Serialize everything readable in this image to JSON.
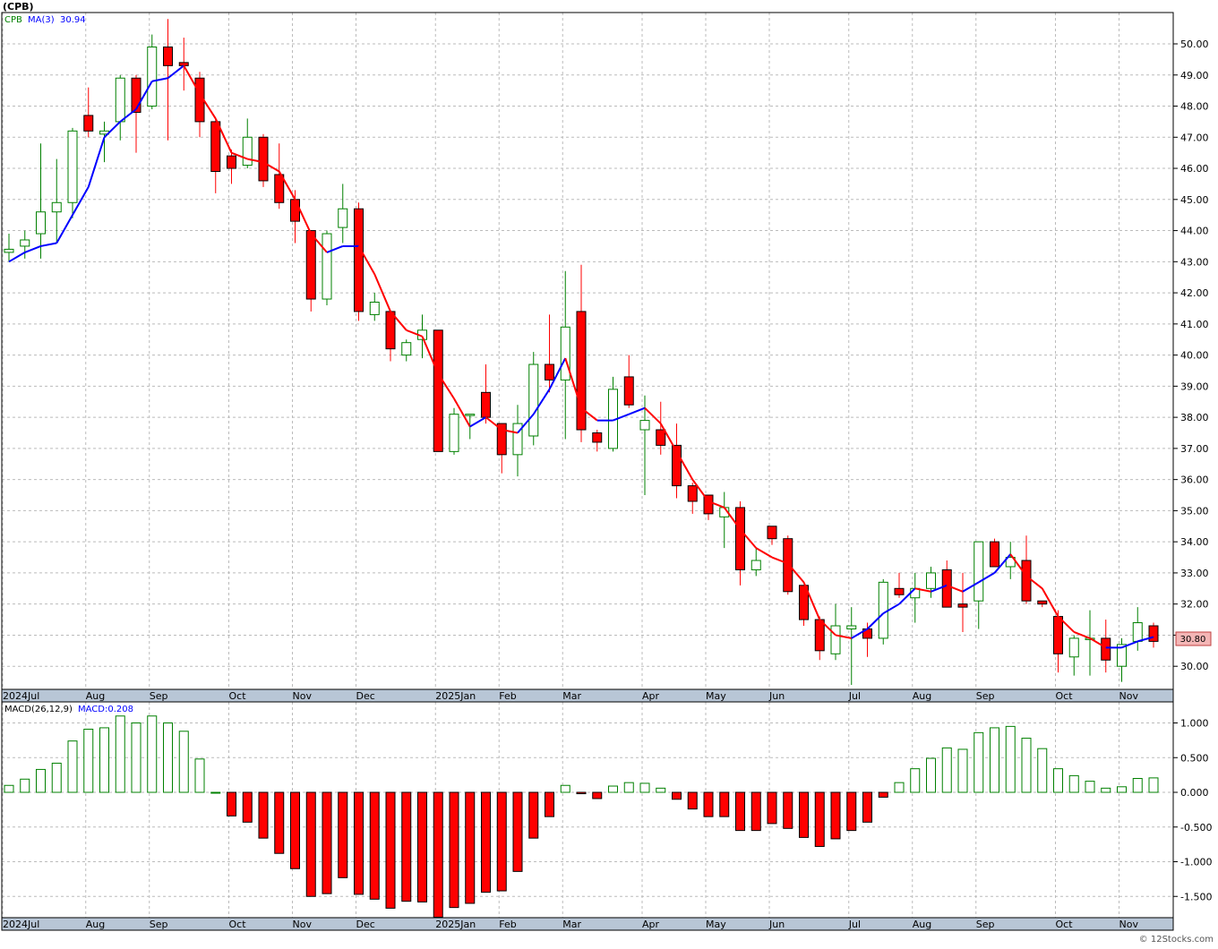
{
  "ticker_title": "(CPB)",
  "footer": "© 12Stocks.com",
  "colors": {
    "up": "#008000",
    "down": "#ff0000",
    "ma_up": "#0000ff",
    "ma_down": "#ff0000",
    "grid": "#bbbbbb",
    "axis_band": "#b8c6d6",
    "price_tag_bg": "#f4b6b6"
  },
  "price_panel": {
    "legend_symbol": "CPB",
    "legend_ma": "MA(3)",
    "legend_ma_value": "30.94",
    "last_price_label": "30.80"
  },
  "macd_panel": {
    "legend_label": "MACD(26,12,9)",
    "legend_value": "MACD:0.208"
  },
  "x_axis_labels": [
    "2024Jul",
    "Aug",
    "Sep",
    "Oct",
    "Nov",
    "Dec",
    "2025Jan",
    "Feb",
    "Mar",
    "Apr",
    "May",
    "Jun",
    "Jul",
    "Aug",
    "Sep",
    "Oct",
    "Nov"
  ],
  "chart_data": [
    {
      "type": "candlestick",
      "title": "(CPB)",
      "ylim": [
        29.4,
        50.9
      ],
      "y_ticks": [
        "30.00",
        "31.00",
        "32.00",
        "33.00",
        "34.00",
        "35.00",
        "36.00",
        "37.00",
        "38.00",
        "39.00",
        "40.00",
        "41.00",
        "42.00",
        "43.00",
        "44.00",
        "45.00",
        "46.00",
        "47.00",
        "48.00",
        "49.00",
        "50.00"
      ],
      "month_starts": [
        {
          "label": "2024Jul",
          "index": -0.4
        },
        {
          "label": "Aug",
          "index": 5
        },
        {
          "label": "Sep",
          "index": 9
        },
        {
          "label": "Oct",
          "index": 14
        },
        {
          "label": "Nov",
          "index": 18
        },
        {
          "label": "Dec",
          "index": 22
        },
        {
          "label": "2025Jan",
          "index": 27
        },
        {
          "label": "Feb",
          "index": 31
        },
        {
          "label": "Mar",
          "index": 35
        },
        {
          "label": "Apr",
          "index": 40
        },
        {
          "label": "May",
          "index": 44
        },
        {
          "label": "Jun",
          "index": 48
        },
        {
          "label": "Jul",
          "index": 53
        },
        {
          "label": "Aug",
          "index": 57
        },
        {
          "label": "Sep",
          "index": 61
        },
        {
          "label": "Oct",
          "index": 66
        },
        {
          "label": "Nov",
          "index": 70
        }
      ],
      "candles": [
        {
          "o": 43.3,
          "h": 43.9,
          "l": 43.0,
          "c": 43.4
        },
        {
          "o": 43.5,
          "h": 44.0,
          "l": 43.1,
          "c": 43.7
        },
        {
          "o": 43.9,
          "h": 46.8,
          "l": 43.1,
          "c": 44.6
        },
        {
          "o": 44.6,
          "h": 46.3,
          "l": 43.6,
          "c": 44.9
        },
        {
          "o": 44.9,
          "h": 47.3,
          "l": 44.4,
          "c": 47.2
        },
        {
          "o": 47.7,
          "h": 48.6,
          "l": 47.0,
          "c": 47.2
        },
        {
          "o": 47.1,
          "h": 47.5,
          "l": 46.2,
          "c": 47.2
        },
        {
          "o": 47.5,
          "h": 49.0,
          "l": 46.9,
          "c": 48.9
        },
        {
          "o": 48.9,
          "h": 49.0,
          "l": 46.5,
          "c": 47.8
        },
        {
          "o": 48.0,
          "h": 50.3,
          "l": 47.9,
          "c": 49.9
        },
        {
          "o": 49.9,
          "h": 50.8,
          "l": 46.9,
          "c": 49.3
        },
        {
          "o": 49.4,
          "h": 50.2,
          "l": 48.5,
          "c": 49.3
        },
        {
          "o": 48.9,
          "h": 49.1,
          "l": 47.0,
          "c": 47.5
        },
        {
          "o": 47.5,
          "h": 47.6,
          "l": 45.2,
          "c": 45.9
        },
        {
          "o": 46.4,
          "h": 46.6,
          "l": 45.5,
          "c": 46.0
        },
        {
          "o": 46.1,
          "h": 47.6,
          "l": 46.0,
          "c": 47.0
        },
        {
          "o": 47.0,
          "h": 47.1,
          "l": 45.4,
          "c": 45.6
        },
        {
          "o": 45.8,
          "h": 46.8,
          "l": 44.7,
          "c": 44.9
        },
        {
          "o": 45.0,
          "h": 45.3,
          "l": 43.6,
          "c": 44.3
        },
        {
          "o": 44.0,
          "h": 44.0,
          "l": 41.4,
          "c": 41.8
        },
        {
          "o": 41.8,
          "h": 44.0,
          "l": 41.6,
          "c": 43.9
        },
        {
          "o": 44.1,
          "h": 45.5,
          "l": 43.6,
          "c": 44.7
        },
        {
          "o": 44.7,
          "h": 44.9,
          "l": 41.1,
          "c": 41.4
        },
        {
          "o": 41.3,
          "h": 42.0,
          "l": 41.1,
          "c": 41.7
        },
        {
          "o": 41.4,
          "h": 41.4,
          "l": 39.8,
          "c": 40.2
        },
        {
          "o": 40.0,
          "h": 40.5,
          "l": 39.8,
          "c": 40.4
        },
        {
          "o": 40.5,
          "h": 41.3,
          "l": 39.9,
          "c": 40.8
        },
        {
          "o": 40.8,
          "h": 40.8,
          "l": 36.9,
          "c": 36.9
        },
        {
          "o": 36.9,
          "h": 38.3,
          "l": 36.8,
          "c": 38.1
        },
        {
          "o": 38.1,
          "h": 38.1,
          "l": 37.3,
          "c": 38.1
        },
        {
          "o": 38.8,
          "h": 39.7,
          "l": 37.8,
          "c": 38.0
        },
        {
          "o": 37.8,
          "h": 37.8,
          "l": 36.2,
          "c": 36.8
        },
        {
          "o": 36.8,
          "h": 38.4,
          "l": 36.1,
          "c": 37.8
        },
        {
          "o": 37.4,
          "h": 40.1,
          "l": 37.1,
          "c": 39.7
        },
        {
          "o": 39.7,
          "h": 41.3,
          "l": 38.8,
          "c": 39.2
        },
        {
          "o": 39.2,
          "h": 42.7,
          "l": 37.3,
          "c": 40.9
        },
        {
          "o": 41.4,
          "h": 42.9,
          "l": 37.2,
          "c": 37.6
        },
        {
          "o": 37.5,
          "h": 37.6,
          "l": 36.9,
          "c": 37.2
        },
        {
          "o": 37.0,
          "h": 39.3,
          "l": 36.9,
          "c": 38.9
        },
        {
          "o": 39.3,
          "h": 40.0,
          "l": 38.3,
          "c": 38.4
        },
        {
          "o": 37.6,
          "h": 38.7,
          "l": 35.5,
          "c": 37.9
        },
        {
          "o": 37.6,
          "h": 38.5,
          "l": 36.8,
          "c": 37.1
        },
        {
          "o": 37.1,
          "h": 37.8,
          "l": 35.4,
          "c": 35.8
        },
        {
          "o": 35.8,
          "h": 35.9,
          "l": 34.9,
          "c": 35.3
        },
        {
          "o": 35.5,
          "h": 35.5,
          "l": 34.7,
          "c": 34.9
        },
        {
          "o": 34.8,
          "h": 35.6,
          "l": 33.8,
          "c": 35.1
        },
        {
          "o": 35.1,
          "h": 35.3,
          "l": 32.6,
          "c": 33.1
        },
        {
          "o": 33.1,
          "h": 33.8,
          "l": 32.9,
          "c": 33.4
        },
        {
          "o": 34.5,
          "h": 34.5,
          "l": 33.9,
          "c": 34.1
        },
        {
          "o": 34.1,
          "h": 34.2,
          "l": 32.3,
          "c": 32.4
        },
        {
          "o": 32.6,
          "h": 32.6,
          "l": 31.3,
          "c": 31.5
        },
        {
          "o": 31.5,
          "h": 31.6,
          "l": 30.2,
          "c": 30.5
        },
        {
          "o": 30.4,
          "h": 32.0,
          "l": 30.2,
          "c": 31.3
        },
        {
          "o": 31.2,
          "h": 31.9,
          "l": 29.4,
          "c": 31.3
        },
        {
          "o": 31.2,
          "h": 31.4,
          "l": 30.3,
          "c": 30.9
        },
        {
          "o": 30.9,
          "h": 32.8,
          "l": 30.7,
          "c": 32.7
        },
        {
          "o": 32.5,
          "h": 33.0,
          "l": 32.2,
          "c": 32.3
        },
        {
          "o": 32.2,
          "h": 33.0,
          "l": 31.4,
          "c": 32.5
        },
        {
          "o": 32.5,
          "h": 33.2,
          "l": 32.2,
          "c": 33.0
        },
        {
          "o": 33.1,
          "h": 33.4,
          "l": 31.9,
          "c": 31.9
        },
        {
          "o": 32.0,
          "h": 33.0,
          "l": 31.1,
          "c": 31.9
        },
        {
          "o": 32.1,
          "h": 33.9,
          "l": 31.2,
          "c": 34.0
        },
        {
          "o": 34.0,
          "h": 34.1,
          "l": 33.2,
          "c": 33.2
        },
        {
          "o": 33.2,
          "h": 34.0,
          "l": 32.8,
          "c": 33.5
        },
        {
          "o": 33.4,
          "h": 34.2,
          "l": 32.0,
          "c": 32.1
        },
        {
          "o": 32.1,
          "h": 32.1,
          "l": 31.9,
          "c": 32.0
        },
        {
          "o": 31.6,
          "h": 31.8,
          "l": 29.8,
          "c": 30.4
        },
        {
          "o": 30.3,
          "h": 31.0,
          "l": 29.7,
          "c": 30.9
        },
        {
          "o": 30.9,
          "h": 31.8,
          "l": 29.7,
          "c": 30.9
        },
        {
          "o": 30.9,
          "h": 31.5,
          "l": 29.8,
          "c": 30.2
        },
        {
          "o": 30.0,
          "h": 30.9,
          "l": 29.5,
          "c": 30.7
        },
        {
          "o": 30.8,
          "h": 31.9,
          "l": 30.5,
          "c": 31.4
        },
        {
          "o": 31.3,
          "h": 31.4,
          "l": 30.6,
          "c": 30.8
        }
      ],
      "ma3": [
        43.0,
        43.3,
        43.5,
        43.6,
        44.5,
        45.4,
        47.0,
        47.5,
        47.9,
        48.8,
        48.9,
        49.3,
        48.4,
        47.6,
        46.5,
        46.3,
        46.2,
        45.9,
        45.0,
        43.9,
        43.3,
        43.5,
        43.5,
        42.6,
        41.4,
        40.8,
        40.6,
        39.4,
        38.6,
        37.7,
        38.0,
        37.6,
        37.5,
        38.1,
        38.9,
        39.9,
        38.3,
        37.9,
        37.9,
        38.1,
        38.3,
        37.8,
        36.9,
        36.0,
        35.3,
        35.1,
        34.4,
        33.8,
        33.5,
        33.3,
        32.7,
        31.5,
        31.0,
        30.9,
        31.2,
        31.7,
        32.0,
        32.5,
        32.4,
        32.6,
        32.4,
        32.7,
        33.0,
        33.6,
        32.9,
        32.5,
        31.6,
        31.1,
        30.9,
        30.6,
        30.6,
        30.8,
        30.94
      ]
    },
    {
      "type": "bar",
      "title": "MACD(26,12,9)",
      "ylim": [
        -1.8,
        1.1
      ],
      "y_ticks": [
        "1.000",
        "0.500",
        "0.000",
        "-0.500",
        "-1.000",
        "-1.500"
      ],
      "values": [
        0.1,
        0.19,
        0.33,
        0.42,
        0.74,
        0.91,
        0.93,
        1.1,
        1.0,
        1.1,
        1.0,
        0.88,
        0.48,
        0.0,
        -0.34,
        -0.43,
        -0.66,
        -0.88,
        -1.1,
        -1.5,
        -1.46,
        -1.23,
        -1.47,
        -1.54,
        -1.67,
        -1.57,
        -1.58,
        -1.8,
        -1.66,
        -1.6,
        -1.44,
        -1.42,
        -1.14,
        -0.66,
        -0.35,
        0.1,
        -0.02,
        -0.09,
        0.09,
        0.14,
        0.13,
        0.06,
        -0.1,
        -0.24,
        -0.35,
        -0.35,
        -0.55,
        -0.55,
        -0.45,
        -0.52,
        -0.65,
        -0.78,
        -0.67,
        -0.55,
        -0.43,
        -0.07,
        0.14,
        0.34,
        0.49,
        0.64,
        0.62,
        0.86,
        0.93,
        0.95,
        0.78,
        0.63,
        0.34,
        0.24,
        0.16,
        0.06,
        0.08,
        0.2,
        0.208
      ]
    }
  ]
}
